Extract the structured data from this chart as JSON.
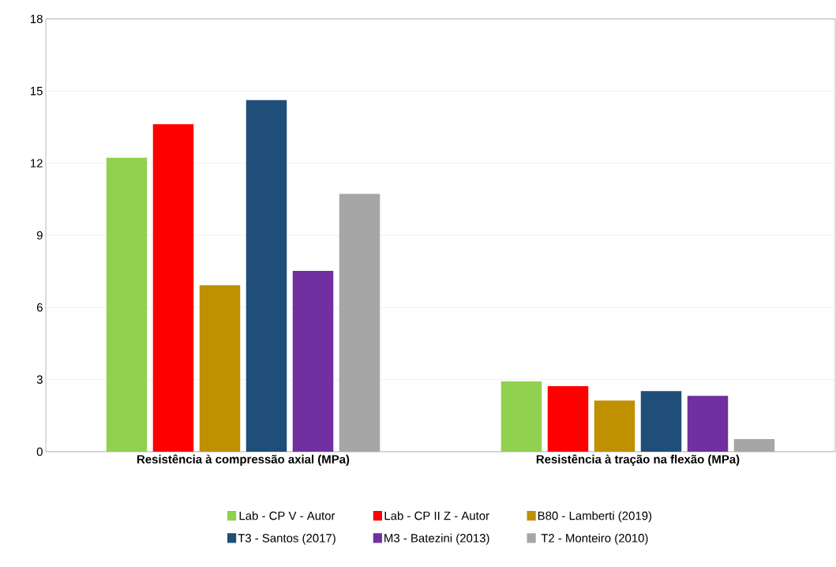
{
  "chart_data": {
    "type": "bar",
    "categories": [
      "Resistência à compressão axial (MPa)",
      "Resistência à tração na flexão (MPa)"
    ],
    "series": [
      {
        "name": "Lab - CP V - Autor",
        "color": "#92d050",
        "values": [
          12.2,
          2.9
        ]
      },
      {
        "name": "Lab - CP II Z - Autor",
        "color": "#ff0000",
        "values": [
          13.6,
          2.7
        ]
      },
      {
        "name": "B80 - Lamberti (2019)",
        "color": "#bf9000",
        "values": [
          6.9,
          2.1
        ]
      },
      {
        "name": "T3 - Santos (2017)",
        "color": "#1f4e79",
        "values": [
          14.6,
          2.5
        ]
      },
      {
        "name": "M3 - Batezini (2013)",
        "color": "#7030a0",
        "values": [
          7.5,
          2.3
        ]
      },
      {
        "name": "T2 - Monteiro (2010)",
        "color": "#a6a6a6",
        "values": [
          10.7,
          0.5
        ]
      }
    ],
    "ylim": [
      0,
      18
    ],
    "yticks": [
      0,
      3,
      6,
      9,
      12,
      15,
      18
    ],
    "grid": "y",
    "legend": "bottom"
  }
}
